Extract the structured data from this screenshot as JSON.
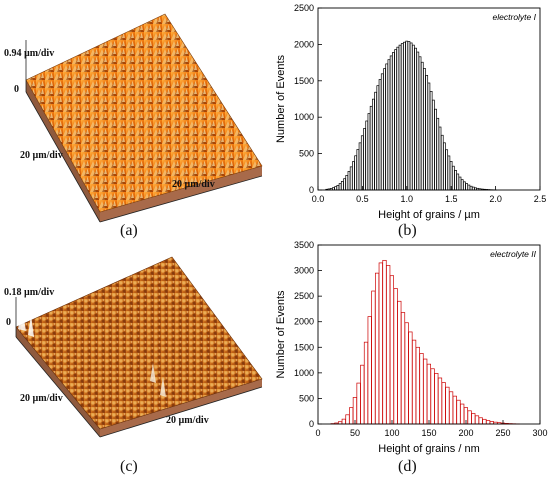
{
  "figure": {
    "captions": [
      "(a)",
      "(b)",
      "(c)",
      "(d)"
    ],
    "afm_a": {
      "z_scale": "0.94 µm/div",
      "zero": "0",
      "x_scale": "20 µm/div",
      "y_scale": "20 µm/div"
    },
    "afm_c": {
      "z_scale": "0.18 µm/div",
      "zero": "0",
      "x_scale": "20 µm/div",
      "y_scale": "20 µm/div"
    }
  },
  "chart_data": [
    {
      "type": "bar",
      "legend": "electrolyte I",
      "xlabel": "Height of grains / µm",
      "ylabel": "Number of Events",
      "xlim": [
        0.0,
        2.5
      ],
      "ylim": [
        0,
        2500
      ],
      "xticks": [
        "0.0",
        "0.5",
        "1.0",
        "1.5",
        "2.0",
        "2.5"
      ],
      "yticks": [
        "0",
        "500",
        "1000",
        "1500",
        "2000",
        "2500"
      ],
      "bar_color": "#000000",
      "bar_width": 0.025,
      "x": [
        0.1,
        0.125,
        0.15,
        0.175,
        0.2,
        0.225,
        0.25,
        0.275,
        0.3,
        0.325,
        0.35,
        0.375,
        0.4,
        0.425,
        0.45,
        0.475,
        0.5,
        0.525,
        0.55,
        0.575,
        0.6,
        0.625,
        0.65,
        0.675,
        0.7,
        0.725,
        0.75,
        0.775,
        0.8,
        0.825,
        0.85,
        0.875,
        0.9,
        0.925,
        0.95,
        0.975,
        1.0,
        1.025,
        1.05,
        1.075,
        1.1,
        1.125,
        1.15,
        1.175,
        1.2,
        1.225,
        1.25,
        1.275,
        1.3,
        1.325,
        1.35,
        1.375,
        1.4,
        1.425,
        1.45,
        1.475,
        1.5,
        1.525,
        1.55,
        1.575,
        1.6,
        1.625,
        1.65,
        1.675,
        1.7,
        1.725,
        1.75,
        1.775,
        1.8,
        1.825,
        1.85,
        1.875,
        1.9,
        1.925,
        1.95,
        1.975,
        2.0
      ],
      "values": [
        10,
        15,
        22,
        32,
        46,
        64,
        88,
        118,
        155,
        200,
        255,
        318,
        390,
        470,
        556,
        648,
        745,
        845,
        948,
        1050,
        1150,
        1248,
        1343,
        1433,
        1518,
        1596,
        1667,
        1732,
        1790,
        1842,
        1888,
        1928,
        1962,
        1990,
        2012,
        2030,
        2045,
        2040,
        2020,
        1990,
        1948,
        1895,
        1830,
        1755,
        1670,
        1575,
        1470,
        1355,
        1235,
        1110,
        985,
        865,
        752,
        648,
        553,
        468,
        393,
        327,
        270,
        220,
        178,
        142,
        112,
        88,
        68,
        52,
        40,
        30,
        23,
        17,
        13,
        10,
        8,
        6,
        4,
        3,
        2
      ]
    },
    {
      "type": "bar",
      "legend": "electrolyte II",
      "xlabel": "Height of grains / nm",
      "ylabel": "Number of Events",
      "xlim": [
        0,
        300
      ],
      "ylim": [
        0,
        3500
      ],
      "xticks": [
        "0",
        "50",
        "100",
        "150",
        "200",
        "250",
        "300"
      ],
      "yticks": [
        "0",
        "500",
        "1000",
        "1500",
        "2000",
        "2500",
        "3000",
        "3500"
      ],
      "bar_color": "#cc0000",
      "bar_width": 5,
      "x": [
        20,
        25,
        30,
        35,
        40,
        45,
        50,
        55,
        60,
        65,
        70,
        75,
        80,
        85,
        90,
        95,
        100,
        105,
        110,
        115,
        120,
        125,
        130,
        135,
        140,
        145,
        150,
        155,
        160,
        165,
        170,
        175,
        180,
        185,
        190,
        195,
        200,
        205,
        210,
        215,
        220,
        225,
        230,
        235,
        240,
        245,
        250,
        255,
        260,
        265,
        270
      ],
      "values": [
        8,
        20,
        45,
        95,
        180,
        320,
        520,
        800,
        1150,
        1600,
        2100,
        2600,
        2950,
        3150,
        3200,
        3100,
        2900,
        2650,
        2400,
        2180,
        1980,
        1800,
        1640,
        1500,
        1380,
        1270,
        1170,
        1080,
        990,
        900,
        810,
        720,
        630,
        545,
        465,
        390,
        320,
        258,
        205,
        160,
        122,
        92,
        68,
        50,
        36,
        26,
        18,
        12,
        8,
        5,
        3
      ]
    }
  ]
}
